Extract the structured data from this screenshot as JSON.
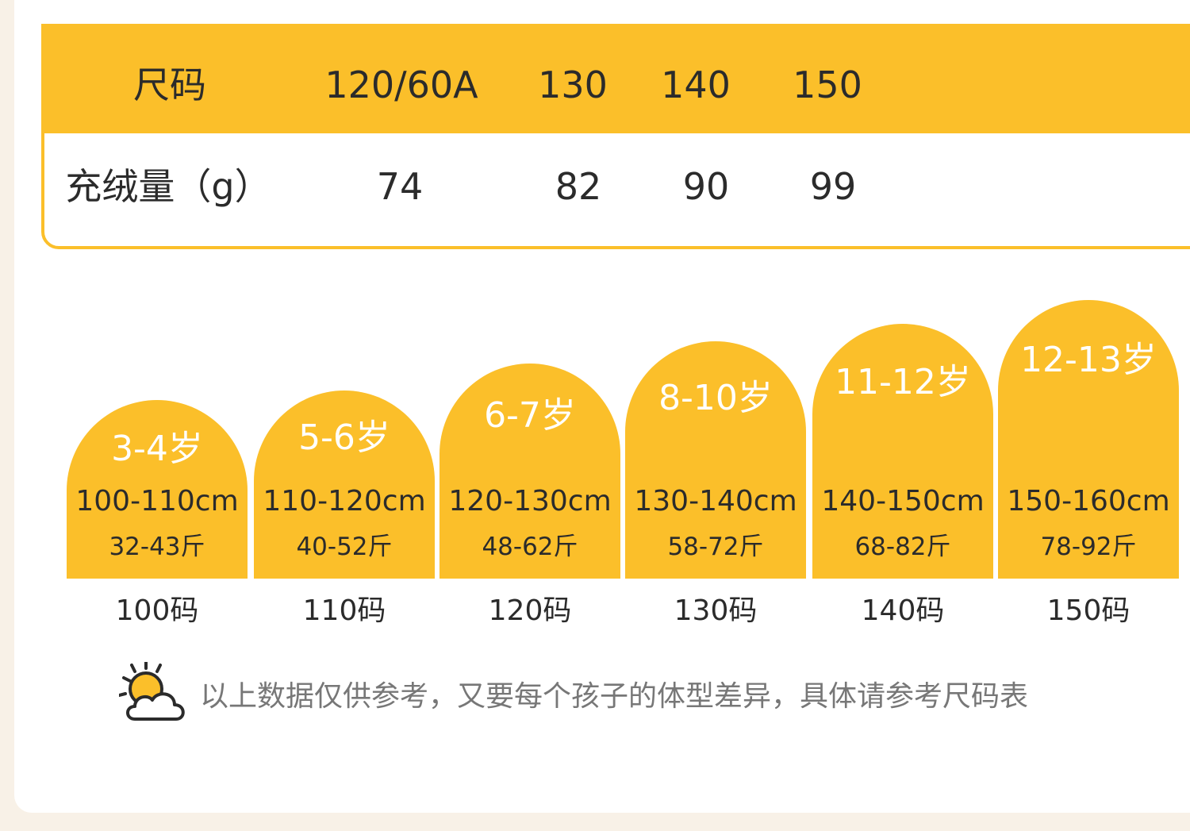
{
  "size_table": {
    "header_label": "尺码",
    "sizes": [
      "120/60A",
      "130",
      "140",
      "150"
    ],
    "fill_label": "充绒量（g）",
    "fill_values": [
      "74",
      "82",
      "90",
      "99"
    ]
  },
  "size_cards": [
    {
      "age": "3-4岁",
      "height": "100-110cm",
      "weight": "32-43斤",
      "size": "100码"
    },
    {
      "age": "5-6岁",
      "height": "110-120cm",
      "weight": "40-52斤",
      "size": "110码"
    },
    {
      "age": "6-7岁",
      "height": "120-130cm",
      "weight": "48-62斤",
      "size": "120码"
    },
    {
      "age": "8-10岁",
      "height": "130-140cm",
      "weight": "58-72斤",
      "size": "130码"
    },
    {
      "age": "11-12岁",
      "height": "140-150cm",
      "weight": "68-82斤",
      "size": "140码"
    },
    {
      "age": "12-13岁",
      "height": "150-160cm",
      "weight": "78-92斤",
      "size": "150码"
    }
  ],
  "note": {
    "icon": "sun-cloud-icon",
    "text": "以上数据仅供参考，又要每个孩子的体型差异，具体请参考尺码表"
  },
  "colors": {
    "accent": "#fbbf2a",
    "background": "#f8f1e7",
    "card": "#ffffff",
    "text": "#2b2b2b",
    "note_text": "#777777"
  }
}
